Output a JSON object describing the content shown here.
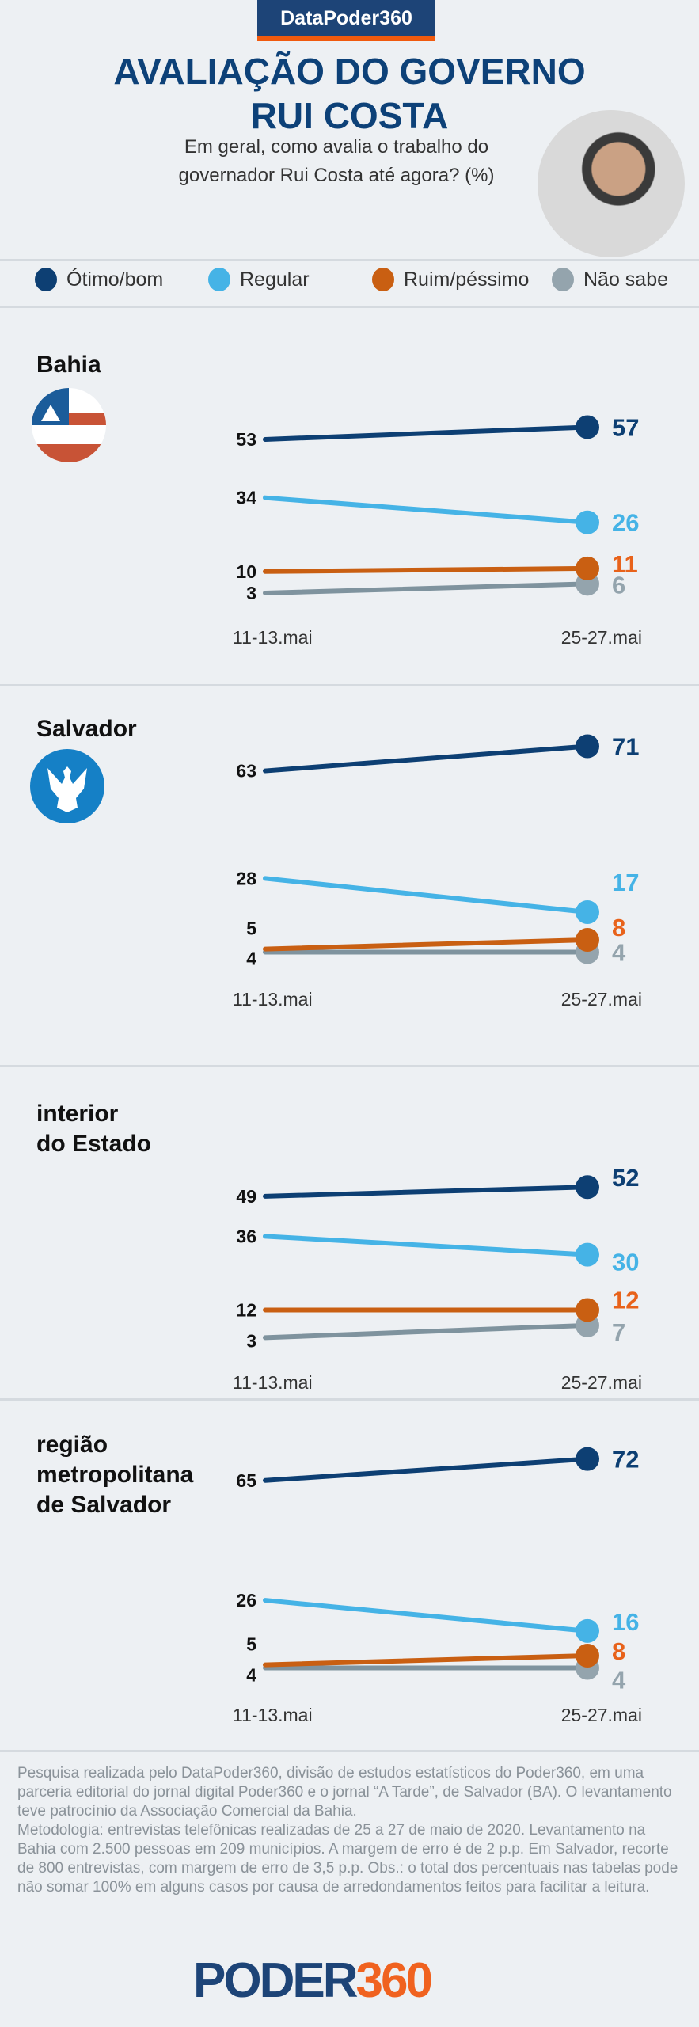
{
  "header": {
    "badge": "DataPoder360",
    "title_line1": "AVALIAÇÃO DO GOVERNO",
    "title_line2": "RUI COSTA",
    "subtitle_line1": "Em geral, como avalia o trabalho do",
    "subtitle_line2": "governador Rui Costa até agora? (%)"
  },
  "legend": [
    {
      "label": "Ótimo/bom",
      "color": "#0d3f73"
    },
    {
      "label": "Regular",
      "color": "#45b3e6"
    },
    {
      "label": "Ruim/péssimo",
      "color": "#c95f12"
    },
    {
      "label": "Não sabe",
      "color": "#94a4ad"
    }
  ],
  "chart_data": [
    {
      "type": "line",
      "title": "Bahia",
      "icon": "bahia-flag-icon",
      "x": [
        "11-13.mai",
        "25-27.mai"
      ],
      "series": [
        {
          "name": "Ótimo/bom",
          "values": [
            53,
            57
          ]
        },
        {
          "name": "Regular",
          "values": [
            34,
            26
          ]
        },
        {
          "name": "Ruim/péssimo",
          "values": [
            10,
            11
          ]
        },
        {
          "name": "Não sabe",
          "values": [
            3,
            6
          ]
        }
      ]
    },
    {
      "type": "line",
      "title": "Salvador",
      "icon": "salvador-emblem-icon",
      "x": [
        "11-13.mai",
        "25-27.mai"
      ],
      "series": [
        {
          "name": "Ótimo/bom",
          "values": [
            63,
            71
          ]
        },
        {
          "name": "Regular",
          "values": [
            28,
            17
          ]
        },
        {
          "name": "Ruim/péssimo",
          "values": [
            5,
            8
          ]
        },
        {
          "name": "Não sabe",
          "values": [
            4,
            4
          ]
        }
      ]
    },
    {
      "type": "line",
      "title": "interior do Estado",
      "title_lines": [
        "interior",
        "do Estado"
      ],
      "x": [
        "11-13.mai",
        "25-27.mai"
      ],
      "series": [
        {
          "name": "Ótimo/bom",
          "values": [
            49,
            52
          ]
        },
        {
          "name": "Regular",
          "values": [
            36,
            30
          ]
        },
        {
          "name": "Ruim/péssimo",
          "values": [
            12,
            12
          ]
        },
        {
          "name": "Não sabe",
          "values": [
            3,
            7
          ]
        }
      ]
    },
    {
      "type": "line",
      "title": "região metropolitana de Salvador",
      "title_lines": [
        "região",
        "metropolitana",
        "de Salvador"
      ],
      "x": [
        "11-13.mai",
        "25-27.mai"
      ],
      "series": [
        {
          "name": "Ótimo/bom",
          "values": [
            65,
            72
          ]
        },
        {
          "name": "Regular",
          "values": [
            26,
            16
          ]
        },
        {
          "name": "Ruim/péssimo",
          "values": [
            5,
            8
          ]
        },
        {
          "name": "Não sabe",
          "values": [
            4,
            4
          ]
        }
      ]
    }
  ],
  "colors": {
    "line": [
      "#0d3f73",
      "#45b3e6",
      "#c95f12",
      "#7f939e"
    ],
    "dot": [
      "#0d3f73",
      "#45b3e6",
      "#c95f12",
      "#94a4ad"
    ],
    "end_label": [
      "#0d3f73",
      "#45b3e6",
      "#e8621a",
      "#94a4ad"
    ]
  },
  "footer": "Pesquisa realizada pelo DataPoder360, divisão de estudos estatísticos do Poder360, em uma parceria editorial do jornal digital Poder360 e o jornal “A Tarde”, de Salvador (BA). O levantamento teve patrocínio da Associação Comercial da Bahia.\nMetodologia: entrevistas telefônicas realizadas de 25 a 27 de maio de 2020. Levantamento na Bahia com 2.500 pessoas em 209 municípios. A margem de erro é de 2 p.p. Em Salvador, recorte de 800 entrevistas, com margem de erro de 3,5 p.p. Obs.: o total dos percentuais nas tabelas pode não somar 100% em alguns casos por causa de arredondamentos feitos para facilitar a leitura.",
  "logo": {
    "part1": "PODER",
    "part2": "360"
  }
}
